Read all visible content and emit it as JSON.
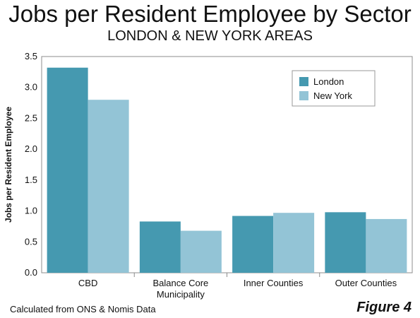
{
  "header": {
    "title": "Jobs per Resident Employee by Sector",
    "subtitle": "LONDON & NEW YORK AREAS"
  },
  "footer": {
    "source": "Calculated from ONS & Nomis Data",
    "figure": "Figure 4"
  },
  "chart_data": {
    "type": "bar",
    "categories": [
      [
        "CBD"
      ],
      [
        "Balance Core",
        "Municipality"
      ],
      [
        "Inner Counties"
      ],
      [
        "Outer Counties"
      ]
    ],
    "series": [
      {
        "name": "London",
        "color": "#4599b0",
        "values": [
          3.32,
          0.83,
          0.92,
          0.98
        ]
      },
      {
        "name": "New York",
        "color": "#93c4d6",
        "values": [
          2.8,
          0.68,
          0.97,
          0.87
        ]
      }
    ],
    "ylabel": "Jobs per Resident Employee",
    "ylim": [
      0,
      3.5
    ],
    "yticks": [
      "0.0",
      "0.5",
      "1.0",
      "1.5",
      "2.0",
      "2.5",
      "3.0",
      "3.5"
    ],
    "legend": "top-right",
    "grid": false
  }
}
